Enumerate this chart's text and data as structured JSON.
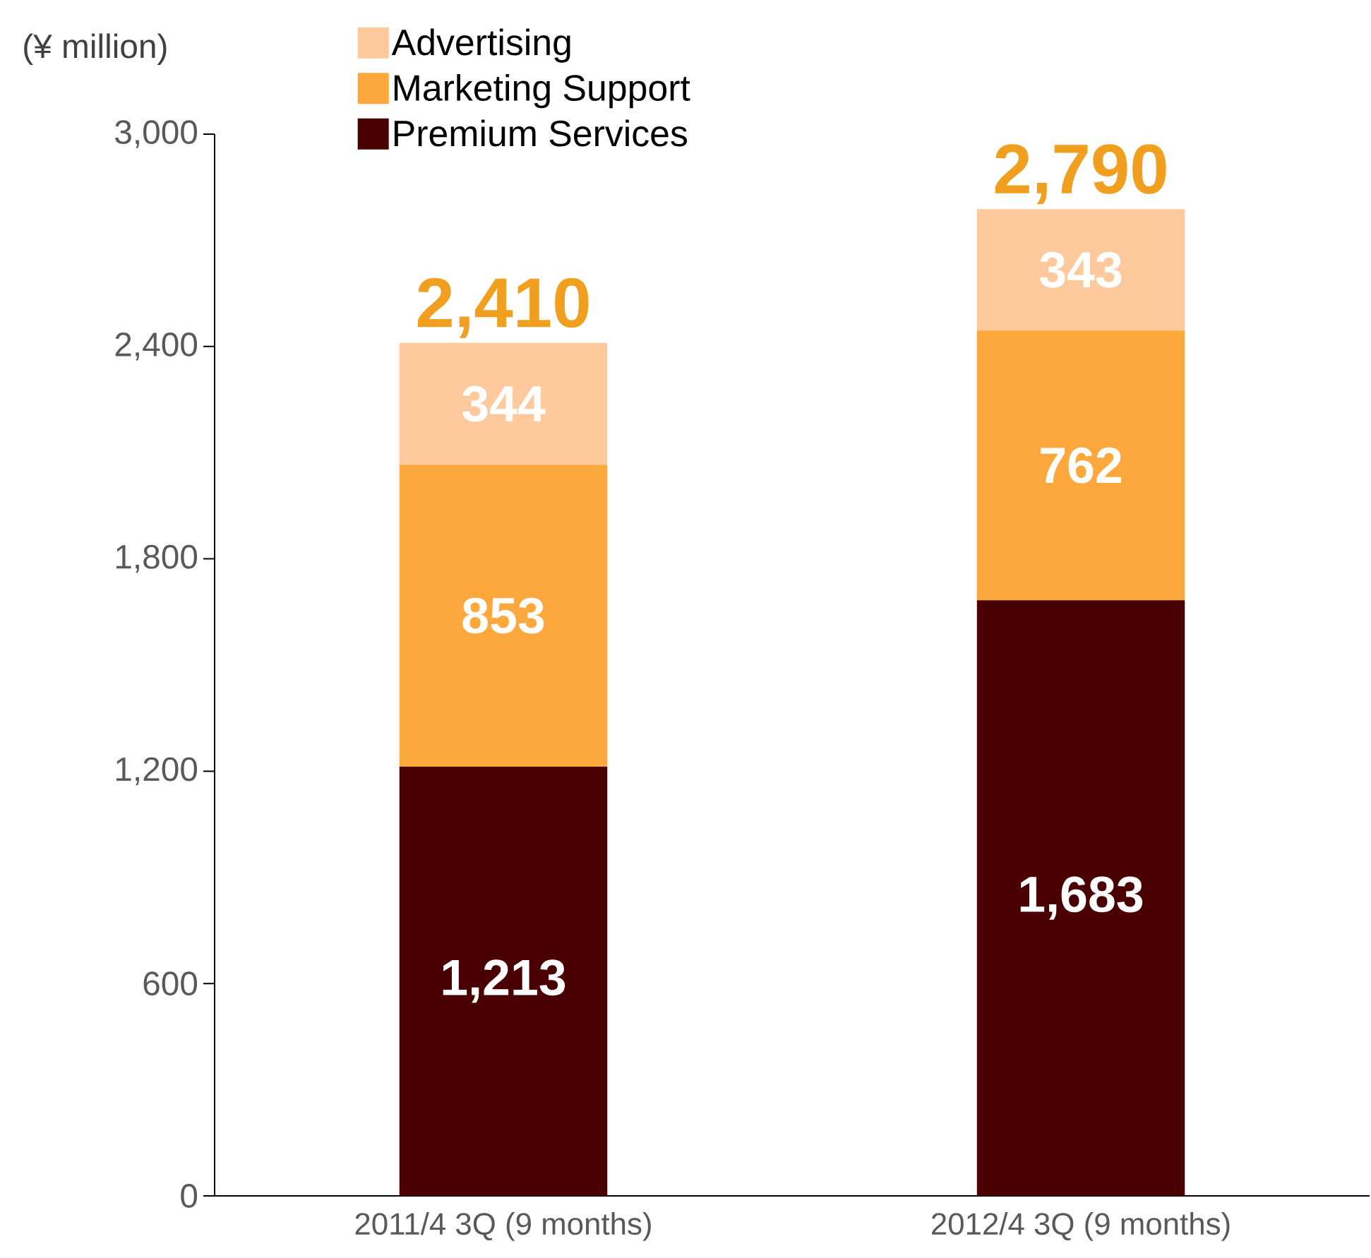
{
  "chart_data": {
    "type": "bar",
    "stacked": true,
    "ylabel": "(¥ million)",
    "categories": [
      "2011/4 3Q (9 months)",
      "2012/4 3Q (9 months)"
    ],
    "series": [
      {
        "name": "Premium Services",
        "color": "#4a0000",
        "values": [
          1213,
          1683
        ],
        "value_labels": [
          "1,213",
          "1,683"
        ]
      },
      {
        "name": "Marketing Support",
        "color": "#fca83c",
        "values": [
          853,
          762
        ],
        "value_labels": [
          "853",
          "762"
        ]
      },
      {
        "name": "Advertising",
        "color": "#ffc99e",
        "values": [
          344,
          343
        ],
        "value_labels": [
          "344",
          "343"
        ]
      }
    ],
    "totals": [
      "2,410",
      "2,790"
    ],
    "ylim": [
      0,
      3000
    ],
    "yticks": [
      0,
      600,
      {
        "value": 1200,
        "label": "1,200"
      },
      {
        "value": 1800,
        "label": "1,800"
      },
      {
        "value": 2400,
        "label": "2,400"
      },
      {
        "value": 3000,
        "label": "3,000"
      }
    ],
    "legend": "top left"
  }
}
